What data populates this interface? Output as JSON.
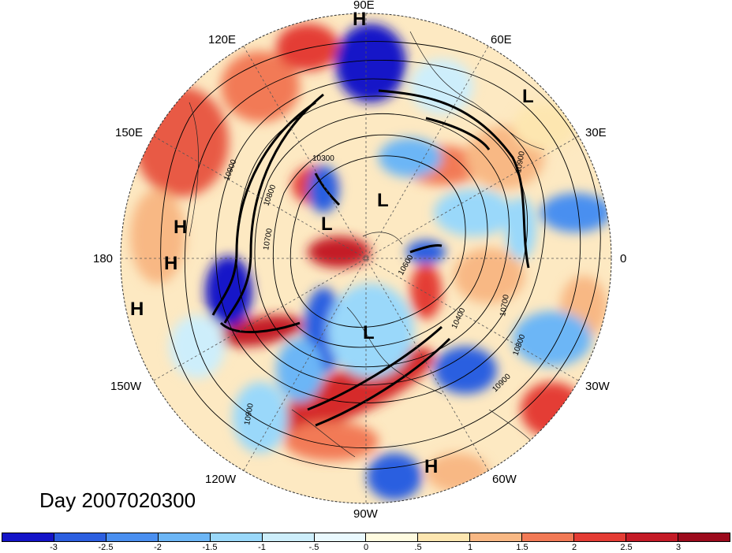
{
  "map": {
    "day_label": "Day 2007020300",
    "longitude_labels": {
      "top": "90E",
      "top_left": "120E",
      "top_right": "60E",
      "upper_left": "150E",
      "upper_right": "30E",
      "left": "180",
      "right": "0",
      "lower_left": "150W",
      "lower_right": "30W",
      "bottom_left": "120W",
      "bottom_right": "60W",
      "bottom": "90W"
    },
    "pressure_centers": [
      "H",
      "L",
      "L",
      "L",
      "L",
      "H",
      "H",
      "H",
      "H"
    ],
    "contour_labels": [
      "10300",
      "10900",
      "10800",
      "10700",
      "10600",
      "10400",
      "10900",
      "10700",
      "10800",
      "10900",
      "10900"
    ],
    "colors": {
      "map_background": "#fde9c2",
      "coast_lines": "#222222"
    }
  },
  "colorbar": {
    "ticks": [
      "-3",
      "-2.5",
      "-2",
      "-1.5",
      "-1",
      "-.5",
      "0",
      ".5",
      "1",
      "1.5",
      "2",
      "2.5",
      "3"
    ],
    "colors": [
      "#1414c8",
      "#2c5fe0",
      "#4a8ff0",
      "#6cb6f6",
      "#9ad8fa",
      "#cdeefb",
      "#eaf9fe",
      "#fffbe0",
      "#fde6b0",
      "#f8b884",
      "#f27a56",
      "#e43c34",
      "#c41a26",
      "#9c0a1c"
    ]
  }
}
